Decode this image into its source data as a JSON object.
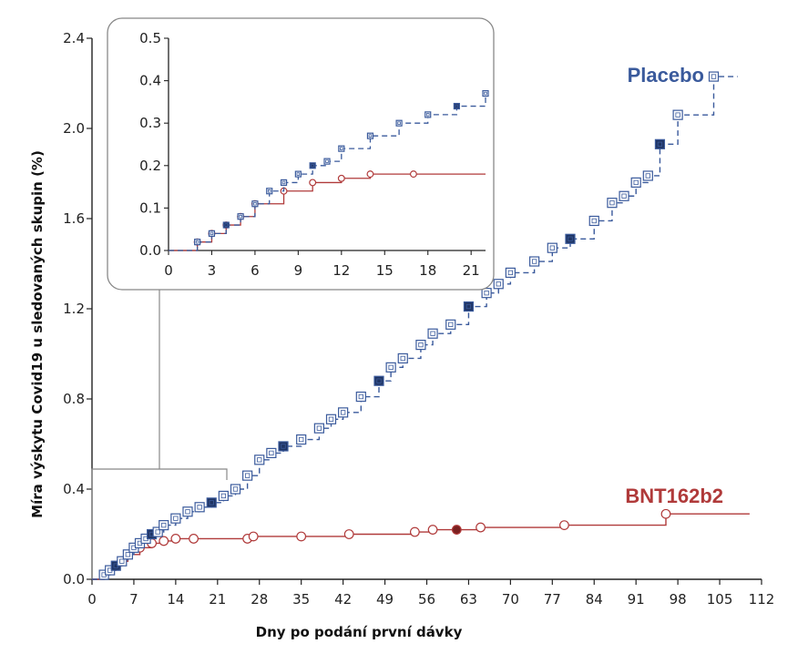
{
  "chart_data": {
    "type": "line",
    "title": "",
    "xlabel": "Dny po podání první dávky",
    "ylabel": "Míra výskytu Covid19 u sledovaných skupin (%)",
    "xlim": [
      0,
      112
    ],
    "ylim": [
      0,
      2.4
    ],
    "xticks": [
      0,
      7,
      14,
      21,
      28,
      35,
      42,
      49,
      56,
      63,
      70,
      77,
      84,
      91,
      98,
      105,
      112
    ],
    "yticks": [
      0.0,
      0.4,
      0.8,
      1.2,
      1.6,
      2.0,
      2.4
    ],
    "xtick_labels": [
      "0",
      "7",
      "14",
      "21",
      "28",
      "35",
      "42",
      "49",
      "56",
      "63",
      "70",
      "77",
      "84",
      "91",
      "98",
      "105",
      "112"
    ],
    "ytick_labels": [
      "0.0",
      "0.4",
      "0.8",
      "1.2",
      "1.6",
      "2.0",
      "2.4"
    ],
    "series": [
      {
        "name": "Placebo",
        "color": "#3a5a9c",
        "linestyle": "dashed",
        "x": [
          0,
          2,
          3,
          4,
          5,
          6,
          7,
          8,
          9,
          10,
          11,
          12,
          14,
          16,
          18,
          20,
          22,
          24,
          26,
          28,
          30,
          32,
          35,
          38,
          40,
          42,
          45,
          48,
          50,
          52,
          55,
          57,
          60,
          63,
          66,
          68,
          70,
          74,
          77,
          80,
          84,
          87,
          89,
          91,
          93,
          95,
          98,
          104,
          108
        ],
        "values": [
          0.0,
          0.02,
          0.04,
          0.06,
          0.08,
          0.11,
          0.14,
          0.16,
          0.18,
          0.2,
          0.21,
          0.24,
          0.27,
          0.3,
          0.32,
          0.34,
          0.37,
          0.4,
          0.46,
          0.53,
          0.56,
          0.59,
          0.62,
          0.67,
          0.71,
          0.74,
          0.81,
          0.88,
          0.94,
          0.98,
          1.04,
          1.09,
          1.13,
          1.21,
          1.27,
          1.31,
          1.36,
          1.41,
          1.47,
          1.51,
          1.59,
          1.67,
          1.7,
          1.76,
          1.79,
          1.93,
          2.06,
          2.23,
          2.23
        ]
      },
      {
        "name": "BNT162b2",
        "color": "#b03a3a",
        "linestyle": "solid",
        "x": [
          0,
          2,
          3,
          4,
          5,
          6,
          8,
          10,
          12,
          14,
          17,
          26,
          27,
          35,
          43,
          54,
          57,
          61,
          65,
          79,
          96,
          110
        ],
        "values": [
          0.0,
          0.02,
          0.04,
          0.06,
          0.08,
          0.11,
          0.14,
          0.16,
          0.17,
          0.18,
          0.18,
          0.18,
          0.19,
          0.19,
          0.2,
          0.21,
          0.22,
          0.22,
          0.23,
          0.24,
          0.29,
          0.29
        ]
      }
    ],
    "inset": {
      "xlim": [
        0,
        22
      ],
      "ylim": [
        0,
        0.5
      ],
      "xticks": [
        0,
        3,
        6,
        9,
        12,
        15,
        18,
        21
      ],
      "yticks": [
        0.0,
        0.1,
        0.2,
        0.3,
        0.4,
        0.5
      ],
      "xtick_labels": [
        "0",
        "3",
        "6",
        "9",
        "12",
        "15",
        "18",
        "21"
      ],
      "ytick_labels": [
        "0.0",
        "0.1",
        "0.2",
        "0.3",
        "0.4",
        "0.5"
      ]
    }
  }
}
